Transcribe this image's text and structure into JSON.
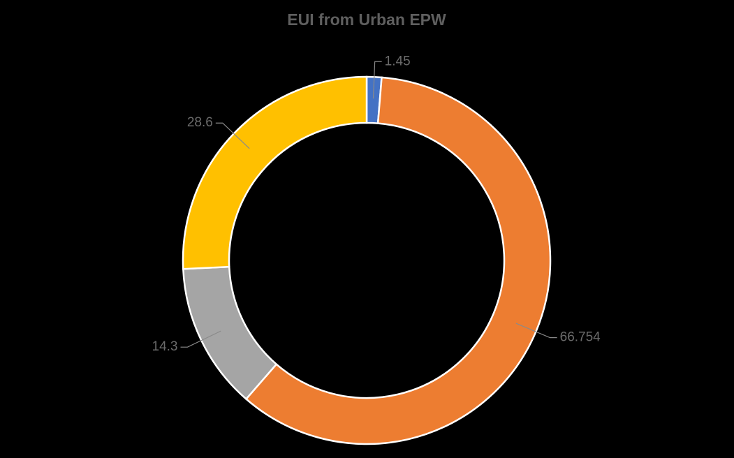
{
  "chart_data": {
    "type": "donut",
    "title": "EUI from Urban EPW",
    "values": [
      1.45,
      66.754,
      14.3,
      28.6
    ],
    "colors": [
      "#4472c4",
      "#ed7d31",
      "#a5a5a5",
      "#ffc000"
    ]
  }
}
